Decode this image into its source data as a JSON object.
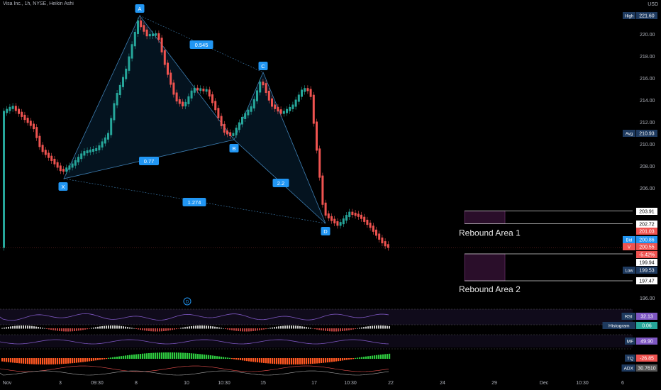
{
  "header": {
    "title": "Visa Inc., 1h, NYSE, Heikin Ashi",
    "currency": "USD"
  },
  "chart_data": {
    "type": "candlestick",
    "y_ticks": [
      196.0,
      206.0,
      208.0,
      210.0,
      212.0,
      214.0,
      216.0,
      218.0,
      220.0
    ],
    "x_ticks": [
      "Nov",
      "3",
      "09:30",
      "8",
      "10",
      "10:30",
      "15",
      "17",
      "10:30",
      "22",
      "24",
      "29",
      "Dec",
      "10:30",
      "6"
    ],
    "pattern_points": {
      "X": "X",
      "A": "A",
      "B": "B",
      "C": "C",
      "D": "D"
    },
    "ratios": [
      "0.545",
      "0.77",
      "2.2",
      "1.274"
    ],
    "zones": [
      {
        "label": "Rebound Area 1",
        "price_top": 203.91,
        "price_bottom": 202.72
      },
      {
        "label": "Rebound Area 2",
        "price_top": 199.94,
        "price_bottom": 197.47
      }
    ],
    "price_labels": [
      {
        "text": "High",
        "value": "221.60"
      },
      {
        "text": "Avg",
        "value": "210.93"
      },
      {
        "text": "",
        "value": "203.91"
      },
      {
        "text": "",
        "value": "202.72"
      },
      {
        "text": "",
        "value": "201.03"
      },
      {
        "text": "Bid",
        "value": "200.86"
      },
      {
        "text": "V",
        "value": "200.55"
      },
      {
        "text": "",
        "value": "-5.42%"
      },
      {
        "text": "",
        "value": "199.94"
      },
      {
        "text": "Low",
        "value": "199.53"
      },
      {
        "text": "",
        "value": "197.47"
      }
    ],
    "indicators": [
      {
        "name": "RSI",
        "value": "32.13"
      },
      {
        "name": "Histogram",
        "value": "0.06"
      },
      {
        "name": "MF",
        "value": "49.90"
      },
      {
        "name": "TQ",
        "value": "-26.85"
      },
      {
        "name": "ADX",
        "value": "30.7610"
      }
    ],
    "marker": "D"
  },
  "colors": {
    "bull": "#26a69a",
    "bear": "#ef5350",
    "pattern": "#3e7fb3",
    "label_bg": "#2196f3"
  }
}
